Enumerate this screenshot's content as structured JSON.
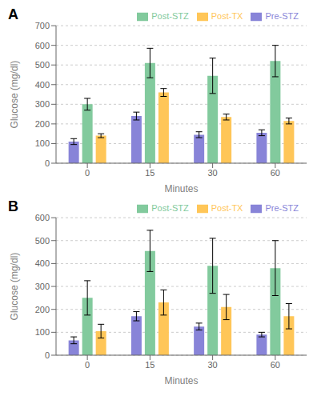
{
  "chart_data": [
    {
      "type": "bar",
      "title": "A",
      "xlabel": "Minutes",
      "ylabel": "Glucose (mg/dl)",
      "categories": [
        "0",
        "15",
        "30",
        "60"
      ],
      "series": [
        {
          "name": "Pre-STZ",
          "color": "#8884d8",
          "values": [
            110,
            240,
            145,
            155
          ],
          "errors": [
            15,
            20,
            15,
            15
          ]
        },
        {
          "name": "Post-STZ",
          "color": "#82ca9d",
          "values": [
            300,
            510,
            445,
            520
          ],
          "errors": [
            30,
            75,
            90,
            80
          ]
        },
        {
          "name": "Post-TX",
          "color": "#ffc658",
          "values": [
            140,
            360,
            235,
            215
          ],
          "errors": [
            10,
            20,
            15,
            15
          ]
        }
      ],
      "ylim": [
        0,
        700
      ],
      "yticks": [
        0,
        100,
        200,
        300,
        400,
        500,
        600,
        700
      ],
      "grid": true,
      "legend": "upper right"
    },
    {
      "type": "bar",
      "title": "B",
      "xlabel": "Minutes",
      "ylabel": "Glucose (mg/dl)",
      "categories": [
        "0",
        "15",
        "30",
        "60"
      ],
      "series": [
        {
          "name": "Pre-STZ",
          "color": "#8884d8",
          "values": [
            65,
            170,
            125,
            90
          ],
          "errors": [
            15,
            20,
            15,
            10
          ]
        },
        {
          "name": "Post-STZ",
          "color": "#82ca9d",
          "values": [
            250,
            455,
            390,
            380
          ],
          "errors": [
            75,
            90,
            120,
            120
          ]
        },
        {
          "name": "Post-TX",
          "color": "#ffc658",
          "values": [
            105,
            230,
            210,
            170
          ],
          "errors": [
            30,
            55,
            55,
            55
          ]
        }
      ],
      "ylim": [
        0,
        600
      ],
      "yticks": [
        0,
        100,
        200,
        300,
        400,
        500,
        600
      ],
      "grid": true,
      "legend": "upper right"
    }
  ]
}
